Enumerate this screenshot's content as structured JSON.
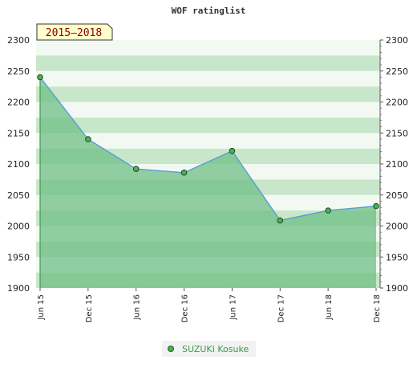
{
  "chart_data": {
    "type": "area",
    "title": "WOF ratinglist",
    "period_badge": "2015—2018",
    "categories": [
      "Jun 15",
      "Dec 15",
      "Jun 16",
      "Dec 16",
      "Jun 17",
      "Dec 17",
      "Jun 18",
      "Dec 18"
    ],
    "series": [
      {
        "name": "SUZUKI Kosuke",
        "values": [
          2240,
          2140,
          2092,
          2086,
          2121,
          2009,
          2025,
          2032
        ]
      }
    ],
    "ylim": [
      1900,
      2300
    ],
    "y_ticks": [
      2300,
      2250,
      2200,
      2150,
      2100,
      2050,
      2000,
      1950,
      1900
    ],
    "grid": true,
    "legend_position": "bottom-center",
    "colors": {
      "line": "#5b9bd5",
      "area": "#6fbf85",
      "marker": "#4caf50",
      "band_dark": "#c8e6c9",
      "band_light": "#f1f8f1",
      "legend_text": "#3a9a4a",
      "badge_bg": "#ffffcc",
      "badge_text": "#8b0000"
    }
  }
}
